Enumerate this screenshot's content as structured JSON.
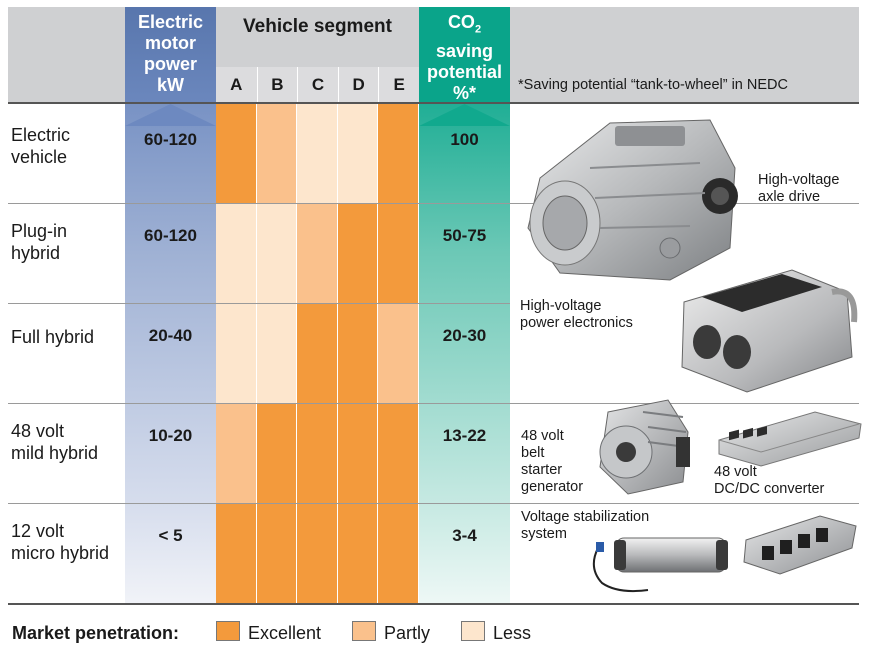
{
  "headers": {
    "motor_power": [
      "Electric",
      "motor",
      "power",
      "kW"
    ],
    "vehicle_segment": "Vehicle segment",
    "segments": [
      "A",
      "B",
      "C",
      "D",
      "E"
    ],
    "co2_main": "CO",
    "co2_sub": "2",
    "co2_rest": [
      "saving",
      "potential",
      "%*"
    ],
    "footnote": "*Saving potential “tank-to-wheel” in NEDC"
  },
  "rows": [
    {
      "label": [
        "Electric",
        "vehicle"
      ],
      "power": "60-120",
      "co2": "100",
      "levels": [
        "excellent",
        "partly",
        "less",
        "less",
        "excellent"
      ]
    },
    {
      "label": [
        "Plug-in",
        "hybrid"
      ],
      "power": "60-120",
      "co2": "50-75",
      "levels": [
        "less",
        "less",
        "partly",
        "excellent",
        "excellent"
      ]
    },
    {
      "label": [
        "Full hybrid"
      ],
      "power": "20-40",
      "co2": "20-30",
      "levels": [
        "less",
        "less",
        "excellent",
        "excellent",
        "partly"
      ]
    },
    {
      "label": [
        "48 volt",
        "mild hybrid"
      ],
      "power": "10-20",
      "co2": "13-22",
      "levels": [
        "partly",
        "excellent",
        "excellent",
        "excellent",
        "excellent"
      ]
    },
    {
      "label": [
        "12 volt",
        "micro hybrid"
      ],
      "power": "< 5",
      "co2": "3-4",
      "levels": [
        "excellent",
        "excellent",
        "excellent",
        "excellent",
        "excellent"
      ]
    }
  ],
  "captions": {
    "axle_drive": [
      "High-voltage",
      "axle drive"
    ],
    "power_electronics": [
      "High-voltage",
      "power electronics"
    ],
    "belt_starter": [
      "48 volt",
      "belt",
      "starter",
      "generator"
    ],
    "dcdc": [
      "48 volt",
      "DC/DC converter"
    ],
    "stabilization": [
      "Voltage stabilization",
      "system"
    ]
  },
  "legend": {
    "title": "Market penetration:",
    "items": [
      {
        "label": "Excellent",
        "level": "excellent"
      },
      {
        "label": "Partly",
        "level": "partly"
      },
      {
        "label": "Less",
        "level": "less"
      }
    ]
  },
  "colors": {
    "excellent": "#f39a3c",
    "partly": "#fac18c",
    "less": "#fde6cd",
    "blue_header": "#5876ad",
    "teal_header": "#0aa48a",
    "gray_header": "#cfd0d2"
  }
}
